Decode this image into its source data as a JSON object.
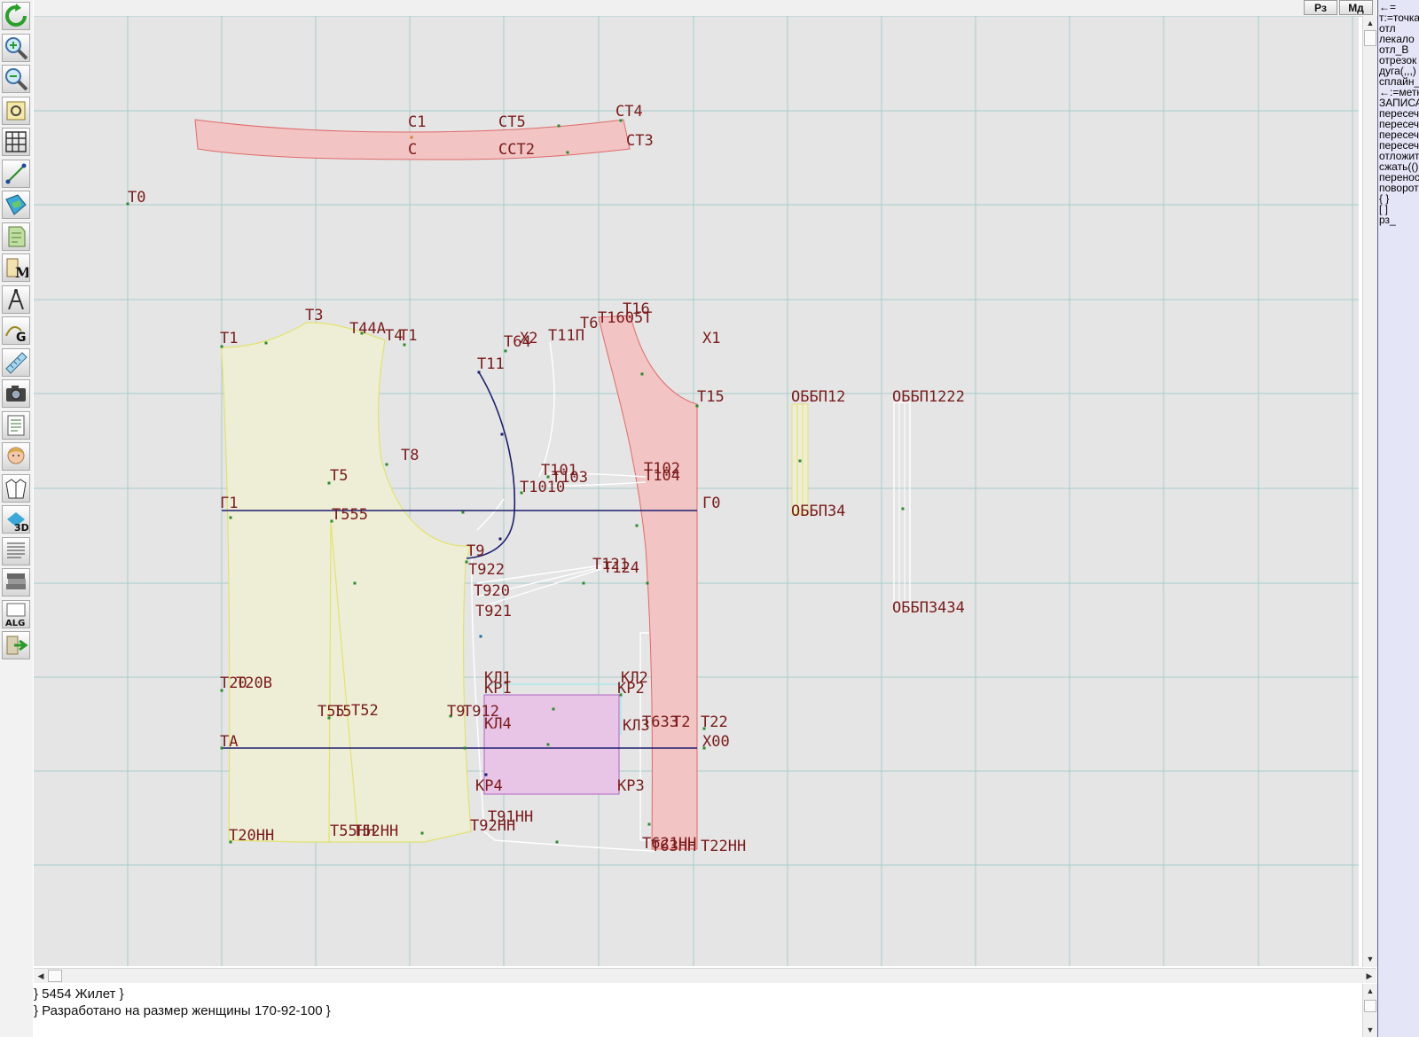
{
  "toolbar": {
    "buttons": [
      {
        "name": "refresh-icon",
        "title": "Обновить"
      },
      {
        "name": "zoom-in-icon",
        "title": "Увеличить"
      },
      {
        "name": "zoom-out-icon",
        "title": "Уменьшить"
      },
      {
        "name": "pattern-view-icon",
        "title": "Просмотр"
      },
      {
        "name": "grid-icon",
        "title": "Сетка"
      },
      {
        "name": "line-tool-icon",
        "title": "Отрезок"
      },
      {
        "name": "layout-icon",
        "title": "Раскладка"
      },
      {
        "name": "pattern-piece-icon",
        "title": "Деталь"
      },
      {
        "name": "measurements-icon",
        "title": "Мерки"
      },
      {
        "name": "compass-icon",
        "title": "Циркуль"
      },
      {
        "name": "grading-icon",
        "title": "Градация"
      },
      {
        "name": "ruler-icon",
        "title": "Линейка"
      },
      {
        "name": "camera-icon",
        "title": "Снимок"
      },
      {
        "name": "document-icon",
        "title": "Документ"
      },
      {
        "name": "model-face-icon",
        "title": "Модель"
      },
      {
        "name": "jacket-icon",
        "title": "Изделие"
      },
      {
        "name": "3d-view-icon",
        "title": "3D"
      },
      {
        "name": "text-document-icon",
        "title": "Описание"
      },
      {
        "name": "books-icon",
        "title": "Библиотека"
      },
      {
        "name": "algorithm-icon",
        "title": "ALG"
      },
      {
        "name": "exit-icon",
        "title": "Выход"
      }
    ]
  },
  "topbar": {
    "rz_label": "Рз",
    "md_label": "Мд"
  },
  "commands": [
    "←=",
    "т:=точка",
    "отл",
    "лекало",
    "отл_В",
    "отрезок",
    "дуга(,,,)",
    "сплайн_",
    "←:=метка",
    "ЗАПИСАТЬ",
    "пересеч",
    "пересеч",
    "пересеч",
    "пересеч",
    "отложить",
    "сжать(()",
    "перенос",
    "поворот",
    "{ }",
    "[ ]",
    "рз_"
  ],
  "info": {
    "line1": "} 5454 Жилет }",
    "line2": "} Разработано на размер женщины 170-92-100 }"
  },
  "drawing": {
    "colors": {
      "grid": "#a8cccc",
      "label": "#7a1a1a",
      "peach_fill": "#f2c4c4",
      "peach_stroke": "#e06a6a",
      "yellow_fill": "#eeeed6",
      "yellow_stroke": "#e2e270",
      "navy": "#1c1f6e",
      "pocket_fill": "#e8c4e6",
      "pocket_stroke": "#b065c2",
      "pocket_outline": "#9ee8ec",
      "white_line": "#ffffff"
    },
    "labels": {
      "c1": "С1",
      "ct5": "СТ5",
      "ct4": "СТ4",
      "ct3": "СТ3",
      "c": "С",
      "cct2": "ССТ2",
      "t0": "Т0",
      "t1": "Т1",
      "t3": "Т3",
      "t44": "Т44А",
      "t4": "Т4",
      "t1_star": "Т1",
      "t6": "Т6",
      "t16": "Т16",
      "t1605": "Т1605Т",
      "x1": "Х1",
      "t64": "Т64",
      "x2": "Х2",
      "t11p": "Т11П",
      "t11": "Т11",
      "t15": "Т15",
      "t8": "Т8",
      "t5": "Т5",
      "t101": "Т101",
      "t103": "Т103",
      "t1010": "Т1010",
      "t102": "Т102",
      "t104": "Т104",
      "g1": "Г1",
      "g0": "Г0",
      "t555": "Т555",
      "t9": "Т9",
      "t922": "Т922",
      "t920": "Т920",
      "t921": "Т921",
      "t121": "Т121",
      "t124": "Т124",
      "obp12": "ОББП12",
      "obp34": "ОББП34",
      "obp1222": "ОББП1222",
      "obp3434": "ОББП3434",
      "t20": "Т20",
      "t20v": "Т20В",
      "t55": "Т55",
      "t55b": "Т5",
      "t52": "Т52",
      "t91": "Т9",
      "t92": "Т912",
      "kl1": "КЛ1",
      "kr1": "КР1",
      "kl2": "КЛ2",
      "kr2": "КР2",
      "kl4": "КЛ4",
      "kl3": "КЛ3",
      "kr4": "КР4",
      "kr3": "КР3",
      "t633": "Т633",
      "t2": "Т2",
      "t22": "Т22",
      "ta": "ТА",
      "x00": "Х00",
      "t20nn": "Т20НН",
      "t55nn": "Т55НН",
      "t52nn": "Т52НН",
      "t91nn": "Т91НН",
      "t92nn": "Т92НН",
      "t621nn": "Т621НН",
      "t63nn": "Т63НН",
      "t22nn": "Т22НН"
    }
  }
}
